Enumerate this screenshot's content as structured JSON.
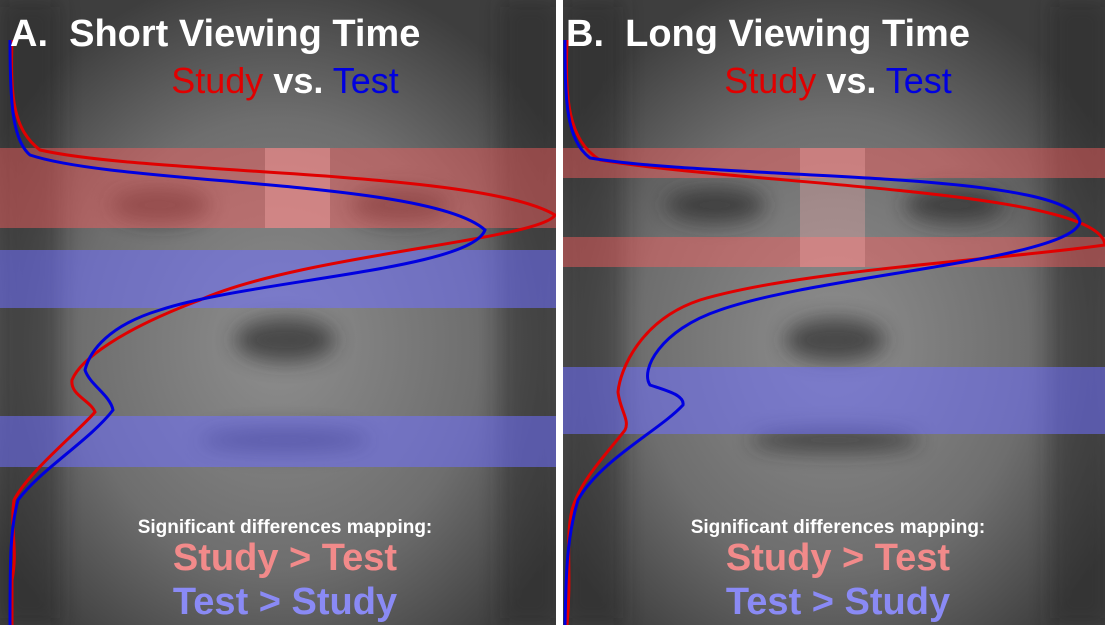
{
  "panels": [
    {
      "title": "A.  Short Viewing Time",
      "subtitle": {
        "study": "Study",
        "vs": "vs.",
        "test": "Test"
      },
      "legend_heading": "Significant differences mapping:",
      "legend": [
        "Study > Test",
        "Test > Study"
      ]
    },
    {
      "title": "B.  Long Viewing Time",
      "subtitle": {
        "study": "Study",
        "vs": "vs.",
        "test": "Test"
      },
      "legend_heading": "Significant differences mapping:",
      "legend": [
        "Study > Test",
        "Test > Study"
      ]
    }
  ]
}
